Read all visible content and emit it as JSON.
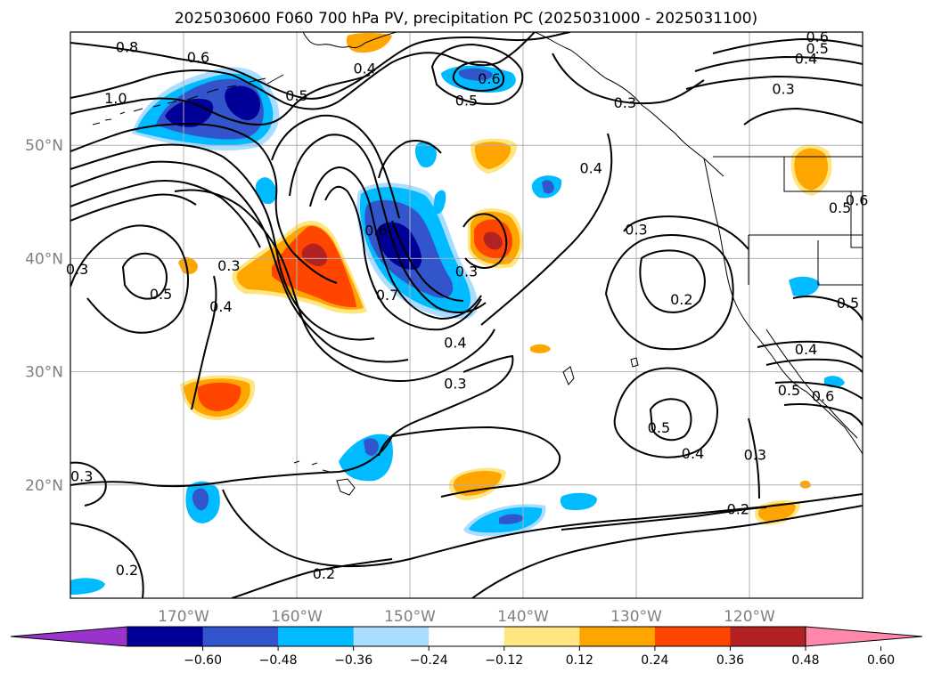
{
  "title": "2025030600 F060 700 hPa PV, precipitation PC (2025031000 - 2025031100)",
  "map": {
    "lon_range": [
      -180,
      -110
    ],
    "lat_range": [
      10,
      60
    ],
    "grid": true,
    "lon_ticks": [
      {
        "value": -170,
        "label": "170°W"
      },
      {
        "value": -160,
        "label": "160°W"
      },
      {
        "value": -150,
        "label": "150°W"
      },
      {
        "value": -140,
        "label": "140°W"
      },
      {
        "value": -130,
        "label": "130°W"
      },
      {
        "value": -120,
        "label": "120°W"
      }
    ],
    "lat_ticks": [
      {
        "value": 20,
        "label": "20°N"
      },
      {
        "value": 30,
        "label": "30°N"
      },
      {
        "value": 40,
        "label": "40°N"
      },
      {
        "value": 50,
        "label": "50°N"
      }
    ],
    "contour_labels": [
      {
        "text": "0.8",
        "lon": -175,
        "lat": 58.7
      },
      {
        "text": "0.6",
        "lon": -168.7,
        "lat": 57.8
      },
      {
        "text": "1.0",
        "lon": -176,
        "lat": 54.2
      },
      {
        "text": "0.5",
        "lon": -160,
        "lat": 54.4
      },
      {
        "text": "0.4",
        "lon": -154,
        "lat": 56.8
      },
      {
        "text": "0.6",
        "lon": -143,
        "lat": 55.9
      },
      {
        "text": "0.5",
        "lon": -145,
        "lat": 54
      },
      {
        "text": "0.6",
        "lon": -114,
        "lat": 59.6
      },
      {
        "text": "0.5",
        "lon": -114,
        "lat": 58.6
      },
      {
        "text": "0.4",
        "lon": -115,
        "lat": 57.7
      },
      {
        "text": "0.3",
        "lon": -117,
        "lat": 55
      },
      {
        "text": "0.3",
        "lon": -131,
        "lat": 53.8
      },
      {
        "text": "0.4",
        "lon": -134,
        "lat": 48
      },
      {
        "text": "0.3",
        "lon": -130,
        "lat": 42.6
      },
      {
        "text": "0.5",
        "lon": -112,
        "lat": 44.5
      },
      {
        "text": "0.6",
        "lon": -110.5,
        "lat": 45.2
      },
      {
        "text": "0.3",
        "lon": -166,
        "lat": 39.4
      },
      {
        "text": "0.3",
        "lon": -179.4,
        "lat": 39.1
      },
      {
        "text": "0.5",
        "lon": -172,
        "lat": 36.9
      },
      {
        "text": "0.4",
        "lon": -166.7,
        "lat": 35.8
      },
      {
        "text": "0.6",
        "lon": -153,
        "lat": 42.5
      },
      {
        "text": "0.7",
        "lon": -152,
        "lat": 36.8
      },
      {
        "text": "0.3",
        "lon": -145,
        "lat": 38.9
      },
      {
        "text": "0.4",
        "lon": -146,
        "lat": 32.6
      },
      {
        "text": "0.3",
        "lon": -146,
        "lat": 29
      },
      {
        "text": "0.2",
        "lon": -126,
        "lat": 36.4
      },
      {
        "text": "0.5",
        "lon": -111.3,
        "lat": 36.1
      },
      {
        "text": "0.4",
        "lon": -115,
        "lat": 32
      },
      {
        "text": "0.5",
        "lon": -116.5,
        "lat": 28.4
      },
      {
        "text": "0.6",
        "lon": -113.5,
        "lat": 27.9
      },
      {
        "text": "0.5",
        "lon": -128,
        "lat": 25.1
      },
      {
        "text": "0.4",
        "lon": -125,
        "lat": 22.8
      },
      {
        "text": "0.3",
        "lon": -119.5,
        "lat": 22.7
      },
      {
        "text": "0.3",
        "lon": -179,
        "lat": 20.8
      },
      {
        "text": "0.2",
        "lon": -121,
        "lat": 17.9
      },
      {
        "text": "0.2",
        "lon": -175,
        "lat": 12.5
      },
      {
        "text": "0.2",
        "lon": -157.6,
        "lat": 12.2
      }
    ]
  },
  "colorbar": {
    "levels": [
      -0.6,
      -0.48,
      -0.36,
      -0.24,
      -0.12,
      0.12,
      0.24,
      0.36,
      0.48,
      0.6
    ],
    "tick_labels": [
      "−0.60",
      "−0.48",
      "−0.36",
      "−0.24",
      "−0.12",
      "0.12",
      "0.24",
      "0.36",
      "0.48",
      "0.60"
    ],
    "colors": [
      "#9933cc",
      "#000099",
      "#3355cc",
      "#00bbff",
      "#aaddff",
      "#ffffff",
      "#ffe680",
      "#ffa500",
      "#ff4500",
      "#b22222",
      "#ff88aa"
    ],
    "extend": "both"
  },
  "colors": {
    "contour": "#000000",
    "grid": "#b0b0b0",
    "coast": "#000000"
  }
}
